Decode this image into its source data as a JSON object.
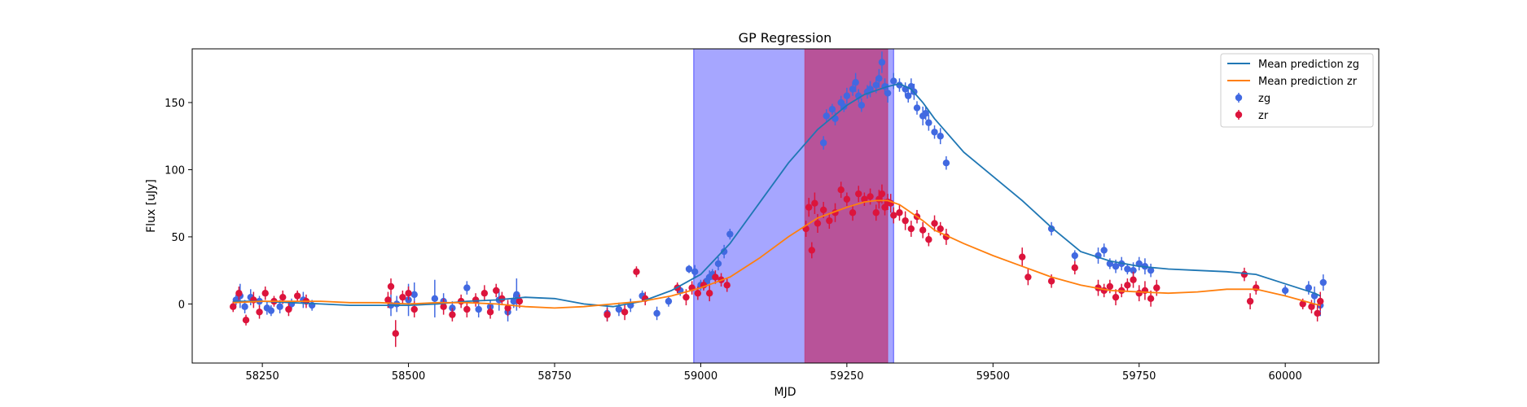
{
  "chart_data": {
    "type": "scatter",
    "title": "GP Regression",
    "xlabel": "MJD",
    "ylabel": "Flux [uJy]",
    "xlim": [
      58130,
      60160
    ],
    "ylim": [
      -44,
      190
    ],
    "xticks": [
      58250,
      58500,
      58750,
      59000,
      59250,
      59500,
      59750,
      60000
    ],
    "yticks": [
      0,
      50,
      100,
      150
    ],
    "grid": false,
    "legend_position": "top-right",
    "legend": {
      "mean_zg": "Mean prediction zg",
      "mean_zr": "Mean prediction zr",
      "zg": "zg",
      "zr": "zr"
    },
    "colors": {
      "mean_zg": "#1f77b4",
      "mean_zr": "#ff7f0e",
      "zg": "#4169e1",
      "zr": "#dc143c",
      "band_blue": "#0000ff",
      "band_red": "#c0306e"
    },
    "shaded_regions": [
      {
        "x0": 58988,
        "x1": 59330,
        "color": "#0000ff",
        "alpha": 0.35
      },
      {
        "x0": 59178,
        "x1": 59320,
        "color": "#c0306e",
        "alpha": 0.7
      }
    ],
    "series": [
      {
        "name": "Mean prediction zg",
        "kind": "line",
        "x": [
          58200,
          58250,
          58300,
          58350,
          58400,
          58450,
          58500,
          58550,
          58600,
          58650,
          58700,
          58750,
          58800,
          58850,
          58900,
          58950,
          59000,
          59050,
          59100,
          59150,
          59200,
          59250,
          59280,
          59300,
          59320,
          59340,
          59360,
          59380,
          59400,
          59450,
          59500,
          59550,
          59600,
          59650,
          59700,
          59750,
          59800,
          59850,
          59900,
          59950,
          60000,
          60050,
          60060
        ],
        "y": [
          2,
          2,
          1,
          0,
          -1,
          -1,
          -1,
          0,
          2,
          3,
          5,
          4,
          0,
          -2,
          2,
          10,
          22,
          45,
          75,
          105,
          130,
          148,
          156,
          159,
          162,
          164,
          160,
          150,
          138,
          113,
          95,
          77,
          57,
          39,
          32,
          28,
          26,
          25,
          24,
          22,
          15,
          8,
          6
        ]
      },
      {
        "name": "Mean prediction zr",
        "kind": "line",
        "x": [
          58200,
          58250,
          58300,
          58350,
          58400,
          58450,
          58500,
          58550,
          58600,
          58650,
          58700,
          58750,
          58800,
          58850,
          58900,
          58950,
          59000,
          59050,
          59100,
          59150,
          59200,
          59250,
          59280,
          59300,
          59320,
          59340,
          59360,
          59380,
          59400,
          59450,
          59500,
          59550,
          59600,
          59650,
          59700,
          59750,
          59800,
          59850,
          59900,
          59950,
          60000,
          60050,
          60060
        ],
        "y": [
          1,
          2,
          2,
          2,
          1,
          1,
          0,
          1,
          1,
          0,
          -2,
          -3,
          -2,
          0,
          2,
          6,
          12,
          20,
          34,
          50,
          64,
          72,
          76,
          77,
          77,
          74,
          68,
          62,
          55,
          45,
          36,
          28,
          20,
          14,
          10,
          9,
          8,
          9,
          11,
          11,
          6,
          0,
          -1
        ]
      },
      {
        "name": "zg",
        "kind": "errorbar",
        "x": [
          58205,
          58212,
          58220,
          58230,
          58245,
          58258,
          58265,
          58280,
          58300,
          58320,
          58335,
          58470,
          58480,
          58500,
          58510,
          58545,
          58560,
          58575,
          58600,
          58620,
          58640,
          58655,
          58670,
          58680,
          58685,
          58840,
          58860,
          58880,
          58900,
          58925,
          58945,
          58965,
          58980,
          58990,
          59000,
          59010,
          59015,
          59020,
          59030,
          59040,
          59050,
          59210,
          59215,
          59225,
          59230,
          59240,
          59245,
          59250,
          59260,
          59265,
          59270,
          59275,
          59285,
          59290,
          59300,
          59305,
          59310,
          59315,
          59320,
          59330,
          59340,
          59350,
          59355,
          59360,
          59365,
          59370,
          59380,
          59385,
          59390,
          59400,
          59410,
          59420,
          59600,
          59640,
          59680,
          59690,
          59700,
          59710,
          59720,
          59730,
          59740,
          59750,
          59760,
          59770,
          60000,
          60040,
          60050,
          60060,
          60065
        ],
        "y": [
          3,
          6,
          -2,
          5,
          2,
          -3,
          -5,
          -2,
          0,
          3,
          -1,
          -1,
          0,
          3,
          7,
          4,
          2,
          -3,
          12,
          -4,
          -2,
          3,
          -6,
          2,
          7,
          -7,
          -4,
          -1,
          6,
          -7,
          2,
          10,
          26,
          24,
          14,
          17,
          20,
          22,
          30,
          39,
          52,
          120,
          140,
          145,
          138,
          150,
          147,
          155,
          160,
          165,
          155,
          148,
          158,
          160,
          163,
          168,
          180,
          162,
          157,
          166,
          163,
          160,
          155,
          162,
          158,
          146,
          140,
          142,
          135,
          128,
          125,
          105,
          56,
          36,
          36,
          40,
          30,
          28,
          30,
          26,
          25,
          30,
          28,
          25,
          10,
          12,
          6,
          -1,
          16
        ],
        "yerr": [
          4,
          9,
          5,
          6,
          4,
          5,
          4,
          5,
          4,
          6,
          4,
          8,
          6,
          12,
          9,
          14,
          6,
          5,
          5,
          6,
          5,
          8,
          7,
          5,
          12,
          6,
          5,
          5,
          4,
          5,
          4,
          4,
          3,
          5,
          4,
          4,
          5,
          4,
          5,
          5,
          4,
          5,
          5,
          4,
          5,
          5,
          4,
          6,
          5,
          7,
          5,
          5,
          5,
          6,
          6,
          7,
          8,
          6,
          7,
          6,
          5,
          5,
          5,
          6,
          6,
          5,
          7,
          5,
          6,
          5,
          6,
          5,
          5,
          4,
          6,
          5,
          4,
          5,
          5,
          4,
          6,
          5,
          6,
          5,
          4,
          5,
          7,
          8,
          6
        ]
      },
      {
        "name": "zr",
        "kind": "errorbar",
        "x": [
          58200,
          58210,
          58222,
          58235,
          58245,
          58255,
          58270,
          58285,
          58295,
          58310,
          58325,
          58465,
          58470,
          58478,
          58490,
          58500,
          58510,
          58560,
          58575,
          58590,
          58600,
          58615,
          58630,
          58640,
          58650,
          58660,
          58670,
          58690,
          58840,
          58870,
          58890,
          58905,
          58960,
          58975,
          58985,
          58995,
          59005,
          59015,
          59025,
          59035,
          59045,
          59180,
          59185,
          59190,
          59195,
          59200,
          59210,
          59220,
          59230,
          59240,
          59250,
          59260,
          59270,
          59280,
          59290,
          59300,
          59305,
          59310,
          59315,
          59320,
          59325,
          59330,
          59340,
          59350,
          59360,
          59370,
          59380,
          59390,
          59400,
          59410,
          59420,
          59550,
          59560,
          59600,
          59640,
          59680,
          59690,
          59700,
          59710,
          59720,
          59730,
          59740,
          59750,
          59760,
          59770,
          59780,
          59930,
          59940,
          59950,
          60030,
          60045,
          60055,
          60060
        ],
        "y": [
          -2,
          8,
          -12,
          3,
          -6,
          8,
          2,
          5,
          -4,
          6,
          2,
          3,
          13,
          -22,
          5,
          8,
          -4,
          -2,
          -8,
          2,
          -4,
          3,
          8,
          -6,
          10,
          4,
          -3,
          2,
          -8,
          -6,
          24,
          4,
          12,
          5,
          12,
          8,
          14,
          8,
          20,
          18,
          14,
          56,
          72,
          40,
          75,
          60,
          70,
          62,
          68,
          85,
          78,
          68,
          82,
          78,
          80,
          68,
          78,
          82,
          72,
          76,
          75,
          66,
          68,
          62,
          56,
          65,
          55,
          48,
          60,
          56,
          50,
          35,
          20,
          17,
          27,
          12,
          10,
          13,
          5,
          10,
          14,
          18,
          8,
          10,
          4,
          12,
          22,
          2,
          12,
          0,
          -2,
          -7,
          2
        ],
        "yerr": [
          4,
          5,
          4,
          6,
          5,
          5,
          4,
          5,
          5,
          4,
          5,
          6,
          6,
          10,
          5,
          5,
          6,
          6,
          5,
          5,
          6,
          5,
          6,
          5,
          5,
          5,
          6,
          5,
          5,
          6,
          4,
          5,
          4,
          6,
          5,
          5,
          4,
          6,
          5,
          5,
          5,
          6,
          7,
          6,
          8,
          7,
          6,
          6,
          7,
          6,
          5,
          6,
          6,
          5,
          6,
          6,
          7,
          7,
          6,
          6,
          7,
          6,
          6,
          7,
          6,
          5,
          6,
          5,
          6,
          5,
          6,
          7,
          6,
          5,
          5,
          6,
          5,
          5,
          6,
          5,
          5,
          6,
          6,
          7,
          6,
          6,
          5,
          6,
          5,
          4,
          5,
          6,
          7
        ]
      }
    ]
  }
}
